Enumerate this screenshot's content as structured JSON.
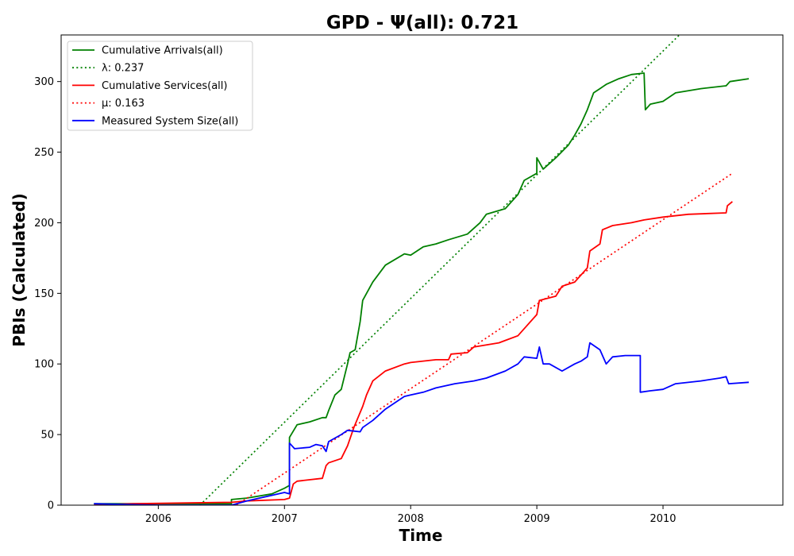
{
  "chart_data": {
    "type": "line",
    "title": "GPD -  Ψ(all): 0.721",
    "xlabel": "Time",
    "ylabel": "PBIs (Calculated)",
    "xlim": [
      2005.23,
      2010.95
    ],
    "ylim": [
      0,
      333
    ],
    "x_ticks": [
      {
        "value": 2006,
        "label": "2006"
      },
      {
        "value": 2007,
        "label": "2007"
      },
      {
        "value": 2008,
        "label": "2008"
      },
      {
        "value": 2009,
        "label": "2009"
      },
      {
        "value": 2010,
        "label": "2010"
      }
    ],
    "y_ticks": [
      {
        "value": 0,
        "label": "0"
      },
      {
        "value": 50,
        "label": "50"
      },
      {
        "value": 100,
        "label": "100"
      },
      {
        "value": 150,
        "label": "150"
      },
      {
        "value": 200,
        "label": "200"
      },
      {
        "value": 250,
        "label": "250"
      },
      {
        "value": 300,
        "label": "300"
      }
    ],
    "grid": false,
    "legend_position": "top-left",
    "series": [
      {
        "name": "Cumulative Arrivals(all)",
        "color": "#008000",
        "style": "solid",
        "points": [
          [
            2005.49,
            1
          ],
          [
            2006.0,
            1
          ],
          [
            2006.58,
            1
          ],
          [
            2006.58,
            4
          ],
          [
            2006.7,
            5
          ],
          [
            2006.9,
            8
          ],
          [
            2007.0,
            12
          ],
          [
            2007.04,
            14
          ],
          [
            2007.04,
            48
          ],
          [
            2007.1,
            57
          ],
          [
            2007.2,
            59
          ],
          [
            2007.3,
            62
          ],
          [
            2007.33,
            62
          ],
          [
            2007.35,
            67
          ],
          [
            2007.4,
            78
          ],
          [
            2007.45,
            82
          ],
          [
            2007.5,
            100
          ],
          [
            2007.52,
            108
          ],
          [
            2007.56,
            110
          ],
          [
            2007.6,
            130
          ],
          [
            2007.62,
            145
          ],
          [
            2007.7,
            158
          ],
          [
            2007.8,
            170
          ],
          [
            2007.95,
            178
          ],
          [
            2008.0,
            177
          ],
          [
            2008.1,
            183
          ],
          [
            2008.2,
            185
          ],
          [
            2008.3,
            188
          ],
          [
            2008.45,
            192
          ],
          [
            2008.55,
            200
          ],
          [
            2008.6,
            206
          ],
          [
            2008.75,
            210
          ],
          [
            2008.85,
            220
          ],
          [
            2008.9,
            230
          ],
          [
            2009.0,
            235
          ],
          [
            2009.0,
            246
          ],
          [
            2009.05,
            238
          ],
          [
            2009.15,
            246
          ],
          [
            2009.25,
            255
          ],
          [
            2009.3,
            262
          ],
          [
            2009.35,
            270
          ],
          [
            2009.4,
            280
          ],
          [
            2009.45,
            292
          ],
          [
            2009.5,
            295
          ],
          [
            2009.55,
            298
          ],
          [
            2009.65,
            302
          ],
          [
            2009.75,
            305
          ],
          [
            2009.85,
            306
          ],
          [
            2009.86,
            280
          ],
          [
            2009.9,
            284
          ],
          [
            2010.0,
            286
          ],
          [
            2010.1,
            292
          ],
          [
            2010.3,
            295
          ],
          [
            2010.5,
            297
          ],
          [
            2010.53,
            300
          ],
          [
            2010.68,
            302
          ]
        ]
      },
      {
        "name": "λ: 0.237",
        "color": "#008000",
        "style": "dotted",
        "points": [
          [
            2006.33,
            0
          ],
          [
            2010.13,
            333
          ]
        ]
      },
      {
        "name": "Cumulative Services(all)",
        "color": "#ff0000",
        "style": "solid",
        "points": [
          [
            2005.49,
            0
          ],
          [
            2005.8,
            1
          ],
          [
            2006.58,
            2
          ],
          [
            2006.7,
            3
          ],
          [
            2007.0,
            4
          ],
          [
            2007.04,
            5
          ],
          [
            2007.07,
            15
          ],
          [
            2007.1,
            17
          ],
          [
            2007.3,
            19
          ],
          [
            2007.33,
            28
          ],
          [
            2007.35,
            30
          ],
          [
            2007.45,
            33
          ],
          [
            2007.5,
            42
          ],
          [
            2007.55,
            55
          ],
          [
            2007.62,
            70
          ],
          [
            2007.65,
            78
          ],
          [
            2007.7,
            88
          ],
          [
            2007.8,
            95
          ],
          [
            2007.95,
            100
          ],
          [
            2008.0,
            101
          ],
          [
            2008.2,
            103
          ],
          [
            2008.3,
            103
          ],
          [
            2008.32,
            107
          ],
          [
            2008.45,
            108
          ],
          [
            2008.5,
            112
          ],
          [
            2008.7,
            115
          ],
          [
            2008.85,
            120
          ],
          [
            2008.9,
            125
          ],
          [
            2009.0,
            135
          ],
          [
            2009.02,
            145
          ],
          [
            2009.15,
            148
          ],
          [
            2009.2,
            155
          ],
          [
            2009.3,
            158
          ],
          [
            2009.4,
            168
          ],
          [
            2009.42,
            180
          ],
          [
            2009.5,
            185
          ],
          [
            2009.52,
            195
          ],
          [
            2009.6,
            198
          ],
          [
            2009.75,
            200
          ],
          [
            2009.85,
            202
          ],
          [
            2010.0,
            204
          ],
          [
            2010.2,
            206
          ],
          [
            2010.5,
            207
          ],
          [
            2010.51,
            212
          ],
          [
            2010.55,
            215
          ]
        ]
      },
      {
        "name": "μ: 0.163",
        "color": "#ff0000",
        "style": "dotted",
        "points": [
          [
            2006.62,
            0
          ],
          [
            2010.55,
            235
          ]
        ]
      },
      {
        "name": "Measured System Size(all)",
        "color": "#0000ff",
        "style": "solid",
        "points": [
          [
            2005.49,
            1
          ],
          [
            2006.0,
            0
          ],
          [
            2006.58,
            0
          ],
          [
            2006.7,
            3
          ],
          [
            2006.9,
            7
          ],
          [
            2007.0,
            9
          ],
          [
            2007.04,
            8
          ],
          [
            2007.04,
            44
          ],
          [
            2007.08,
            40
          ],
          [
            2007.2,
            41
          ],
          [
            2007.25,
            43
          ],
          [
            2007.3,
            42
          ],
          [
            2007.33,
            38
          ],
          [
            2007.35,
            45
          ],
          [
            2007.45,
            50
          ],
          [
            2007.5,
            53
          ],
          [
            2007.6,
            52
          ],
          [
            2007.62,
            55
          ],
          [
            2007.7,
            60
          ],
          [
            2007.8,
            68
          ],
          [
            2007.95,
            77
          ],
          [
            2008.0,
            78
          ],
          [
            2008.1,
            80
          ],
          [
            2008.2,
            83
          ],
          [
            2008.35,
            86
          ],
          [
            2008.5,
            88
          ],
          [
            2008.6,
            90
          ],
          [
            2008.75,
            95
          ],
          [
            2008.85,
            100
          ],
          [
            2008.9,
            105
          ],
          [
            2009.0,
            104
          ],
          [
            2009.02,
            112
          ],
          [
            2009.05,
            100
          ],
          [
            2009.1,
            100
          ],
          [
            2009.2,
            95
          ],
          [
            2009.3,
            100
          ],
          [
            2009.35,
            102
          ],
          [
            2009.4,
            105
          ],
          [
            2009.42,
            115
          ],
          [
            2009.5,
            110
          ],
          [
            2009.55,
            100
          ],
          [
            2009.6,
            105
          ],
          [
            2009.7,
            106
          ],
          [
            2009.82,
            106
          ],
          [
            2009.82,
            80
          ],
          [
            2009.9,
            81
          ],
          [
            2010.0,
            82
          ],
          [
            2010.1,
            86
          ],
          [
            2010.3,
            88
          ],
          [
            2010.45,
            90
          ],
          [
            2010.5,
            91
          ],
          [
            2010.52,
            86
          ],
          [
            2010.68,
            87
          ]
        ]
      }
    ]
  }
}
